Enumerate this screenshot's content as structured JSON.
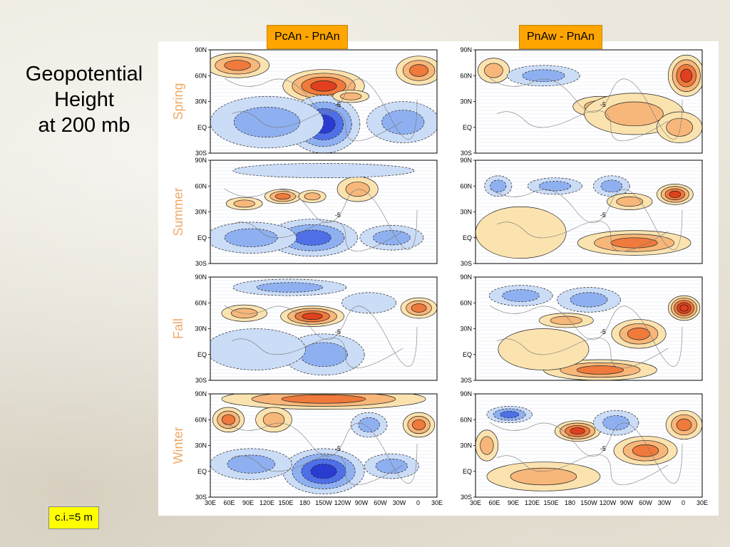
{
  "slide": {
    "title_lines": [
      "Geopotential",
      "Height",
      "at 200 mb"
    ],
    "contour_interval": "c.i.=5 m"
  },
  "columns": [
    {
      "label": "PcAn - PnAn"
    },
    {
      "label": "PnAw - PnAn"
    }
  ],
  "rows": [
    {
      "season": "Spring"
    },
    {
      "season": "Summer"
    },
    {
      "season": "Fall"
    },
    {
      "season": "Winter"
    }
  ],
  "lat_ticks": [
    "90N",
    "60N",
    "30N",
    "EQ",
    "30S"
  ],
  "lon_ticks": [
    "30E",
    "60E",
    "90E",
    "120E",
    "150E",
    "180",
    "150W",
    "120W",
    "90W",
    "60W",
    "30W",
    "0",
    "30E"
  ],
  "contour_label": "-5",
  "colors": {
    "season_label": "#f0a868",
    "positive_light": "#fbe3b0",
    "positive_mid": "#f7b77a",
    "positive_strong": "#ef7a3c",
    "positive_max": "#e0401e",
    "negative_light": "#cbdcf6",
    "negative_mid": "#8fb0f0",
    "negative_strong": "#4f6fe6",
    "negative_max": "#2a3bd0"
  }
}
